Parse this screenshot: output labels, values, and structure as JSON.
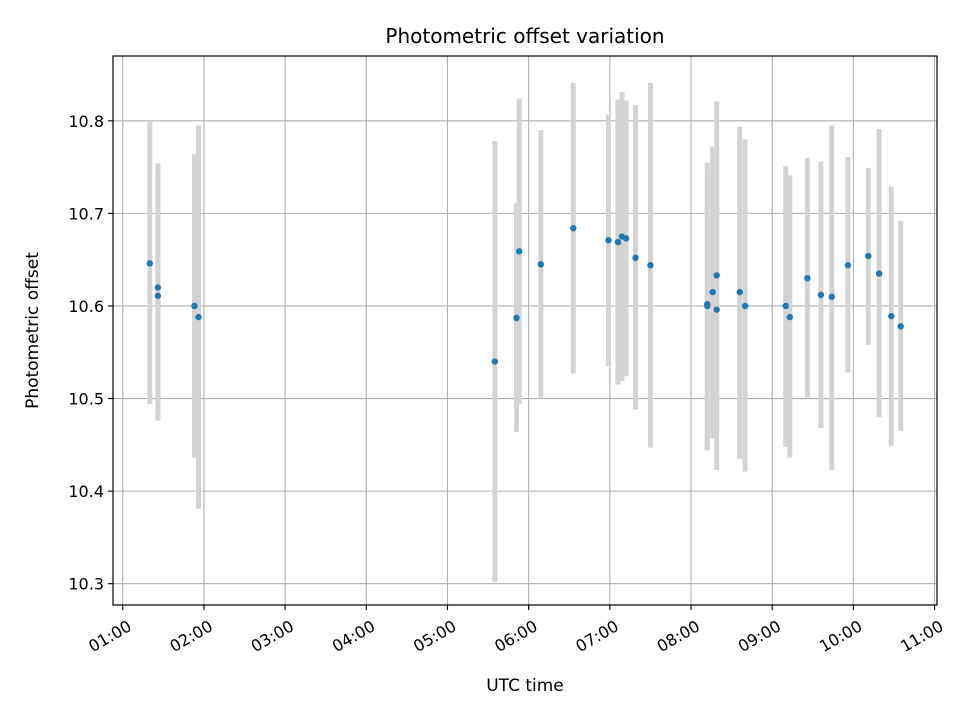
{
  "chart_data": {
    "type": "scatter",
    "title": "Photometric offset variation",
    "xlabel": "UTC time",
    "ylabel": "Photometric offset",
    "x_tick_labels": [
      "01:00",
      "02:00",
      "03:00",
      "04:00",
      "05:00",
      "06:00",
      "07:00",
      "08:00",
      "09:00",
      "10:00",
      "11:00"
    ],
    "x_tick_hours": [
      1,
      2,
      3,
      4,
      5,
      6,
      7,
      8,
      9,
      10,
      11
    ],
    "y_tick_labels": [
      "10.3",
      "10.4",
      "10.5",
      "10.6",
      "10.7",
      "10.8"
    ],
    "y_tick_values": [
      10.3,
      10.4,
      10.5,
      10.6,
      10.7,
      10.8
    ],
    "xlim_hours": [
      0.88,
      11.03
    ],
    "ylim": [
      10.277,
      10.87
    ],
    "grid": true,
    "colors": {
      "point": "#1f77b4",
      "errorbar": "#d3d3d3",
      "grid": "#b0b0b0"
    },
    "points": [
      {
        "time": "01:20",
        "y": 10.646,
        "ylow": 10.494,
        "yhigh": 10.799
      },
      {
        "time": "01:26",
        "y": 10.62,
        "ylow": 10.486,
        "yhigh": 10.754
      },
      {
        "time": "01:26",
        "y": 10.611,
        "ylow": 10.476,
        "yhigh": 10.746
      },
      {
        "time": "01:53",
        "y": 10.6,
        "ylow": 10.436,
        "yhigh": 10.764
      },
      {
        "time": "01:56",
        "y": 10.588,
        "ylow": 10.381,
        "yhigh": 10.795
      },
      {
        "time": "05:35",
        "y": 10.54,
        "ylow": 10.302,
        "yhigh": 10.778
      },
      {
        "time": "05:51",
        "y": 10.587,
        "ylow": 10.464,
        "yhigh": 10.711
      },
      {
        "time": "05:53",
        "y": 10.659,
        "ylow": 10.494,
        "yhigh": 10.824
      },
      {
        "time": "06:09",
        "y": 10.645,
        "ylow": 10.499,
        "yhigh": 10.79
      },
      {
        "time": "06:33",
        "y": 10.684,
        "ylow": 10.527,
        "yhigh": 10.841
      },
      {
        "time": "06:59",
        "y": 10.671,
        "ylow": 10.535,
        "yhigh": 10.807
      },
      {
        "time": "07:06",
        "y": 10.669,
        "ylow": 10.515,
        "yhigh": 10.823
      },
      {
        "time": "07:09",
        "y": 10.675,
        "ylow": 10.519,
        "yhigh": 10.831
      },
      {
        "time": "07:12",
        "y": 10.673,
        "ylow": 10.524,
        "yhigh": 10.822
      },
      {
        "time": "07:19",
        "y": 10.652,
        "ylow": 10.488,
        "yhigh": 10.817
      },
      {
        "time": "07:30",
        "y": 10.644,
        "ylow": 10.447,
        "yhigh": 10.841
      },
      {
        "time": "08:12",
        "y": 10.602,
        "ylow": 10.45,
        "yhigh": 10.755
      },
      {
        "time": "08:12",
        "y": 10.6,
        "ylow": 10.444,
        "yhigh": 10.74
      },
      {
        "time": "08:16",
        "y": 10.615,
        "ylow": 10.457,
        "yhigh": 10.772
      },
      {
        "time": "08:19",
        "y": 10.633,
        "ylow": 10.498,
        "yhigh": 10.767
      },
      {
        "time": "08:19",
        "y": 10.596,
        "ylow": 10.423,
        "yhigh": 10.821
      },
      {
        "time": "08:36",
        "y": 10.615,
        "ylow": 10.435,
        "yhigh": 10.794
      },
      {
        "time": "08:40",
        "y": 10.6,
        "ylow": 10.421,
        "yhigh": 10.78
      },
      {
        "time": "09:10",
        "y": 10.6,
        "ylow": 10.448,
        "yhigh": 10.751
      },
      {
        "time": "09:13",
        "y": 10.588,
        "ylow": 10.436,
        "yhigh": 10.741
      },
      {
        "time": "09:26",
        "y": 10.63,
        "ylow": 10.501,
        "yhigh": 10.76
      },
      {
        "time": "09:36",
        "y": 10.612,
        "ylow": 10.468,
        "yhigh": 10.756
      },
      {
        "time": "09:44",
        "y": 10.61,
        "ylow": 10.423,
        "yhigh": 10.795
      },
      {
        "time": "09:56",
        "y": 10.644,
        "ylow": 10.528,
        "yhigh": 10.761
      },
      {
        "time": "10:11",
        "y": 10.654,
        "ylow": 10.558,
        "yhigh": 10.749
      },
      {
        "time": "10:19",
        "y": 10.635,
        "ylow": 10.48,
        "yhigh": 10.791
      },
      {
        "time": "10:28",
        "y": 10.589,
        "ylow": 10.449,
        "yhigh": 10.729
      },
      {
        "time": "10:35",
        "y": 10.578,
        "ylow": 10.465,
        "yhigh": 10.692
      }
    ]
  }
}
